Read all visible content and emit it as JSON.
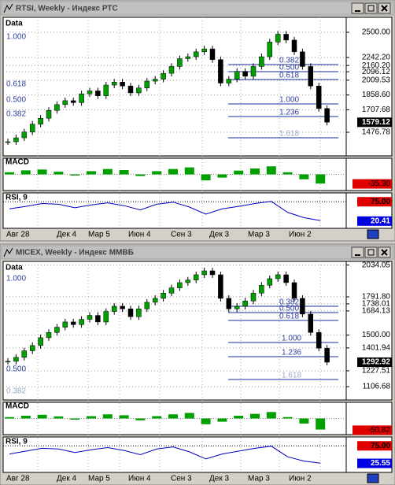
{
  "windows": [
    {
      "title": "RTSI, Weekly - Индекс РТС",
      "data_label": "Data",
      "price_ylim": [
        1235,
        2653
      ],
      "price_ticks": [
        {
          "value": 2500,
          "label": "2500.00"
        },
        {
          "value": 2242.2,
          "label": "2242.20"
        },
        {
          "value": 2160.2,
          "label": "2160.20"
        },
        {
          "value": 2096.12,
          "label": "2096.12"
        },
        {
          "value": 2009.53,
          "label": "2009.53"
        },
        {
          "value": 1858.6,
          "label": "1858.60"
        },
        {
          "value": 1707.68,
          "label": "1707.68"
        },
        {
          "value": 1476.78,
          "label": "1476.78"
        }
      ],
      "last_price": {
        "value": 1579.12,
        "label": "1579.12"
      },
      "fib_labels": [
        "1.000",
        "0.618",
        "0.500",
        "0.382",
        "0.382",
        "0.500",
        "0.618",
        "1.000",
        "1.236",
        "1.618"
      ],
      "closes": [
        1380,
        1420,
        1480,
        1560,
        1620,
        1700,
        1760,
        1800,
        1780,
        1870,
        1900,
        1850,
        1960,
        1990,
        1950,
        1880,
        1930,
        2000,
        2020,
        2080,
        2150,
        2230,
        2250,
        2300,
        2330,
        2220,
        1980,
        2020,
        2100,
        2050,
        2150,
        2250,
        2400,
        2480,
        2420,
        2300,
        2150,
        1950,
        1720,
        1580
      ],
      "macd": {
        "label": "MACD",
        "ylim": [
          -60,
          60
        ],
        "values": [
          8,
          15,
          18,
          10,
          -4,
          12,
          20,
          16,
          -6,
          12,
          20,
          26,
          -22,
          -12,
          14,
          22,
          30,
          8,
          -18,
          -34
        ],
        "last": {
          "value": -35.3,
          "label": "-35.30"
        }
      },
      "rsi": {
        "label": "RSI, 9",
        "ylim": [
          0,
          100
        ],
        "values": [
          55,
          62,
          70,
          68,
          58,
          66,
          72,
          64,
          52,
          68,
          74,
          60,
          40,
          55,
          62,
          70,
          76,
          45,
          30,
          22
        ],
        "upper": {
          "value": 75,
          "label": "75.00"
        },
        "last": {
          "value": 20.41,
          "label": "20.41"
        }
      },
      "x_labels": [
        "Авг 28",
        "Дек 4",
        "Мар 5",
        "Июн 4",
        "Сен 3",
        "Дек 3",
        "Мар 3",
        "Июн 2"
      ]
    },
    {
      "title": "MICEX, Weekly - Индекс ММВБ",
      "data_label": "Data",
      "price_ylim": [
        1005,
        2062
      ],
      "price_ticks": [
        {
          "value": 2034.05,
          "label": "2034.05"
        },
        {
          "value": 1791.8,
          "label": "1791.80"
        },
        {
          "value": 1738.01,
          "label": "1738.01"
        },
        {
          "value": 1684.13,
          "label": "1684.13"
        },
        {
          "value": 1500,
          "label": "1500.00"
        },
        {
          "value": 1401.94,
          "label": "1401.94"
        },
        {
          "value": 1227.51,
          "label": "1227.51"
        },
        {
          "value": 1106.68,
          "label": "1106.68"
        }
      ],
      "last_price": {
        "value": 1292.92,
        "label": "1292.92"
      },
      "fib_labels": [
        "1.000",
        "0.382",
        "0.500",
        "0.618",
        "1.000",
        "1.236",
        "1.618",
        "0.500",
        "0.382"
      ],
      "closes": [
        1300,
        1330,
        1380,
        1420,
        1480,
        1520,
        1560,
        1600,
        1580,
        1620,
        1650,
        1600,
        1680,
        1720,
        1700,
        1640,
        1700,
        1750,
        1780,
        1820,
        1860,
        1900,
        1920,
        1960,
        1990,
        1960,
        1780,
        1700,
        1720,
        1760,
        1820,
        1880,
        1930,
        1960,
        1900,
        1780,
        1660,
        1520,
        1400,
        1293
      ],
      "macd": {
        "label": "MACD",
        "ylim": [
          -70,
          70
        ],
        "values": [
          6,
          12,
          16,
          9,
          -5,
          10,
          18,
          14,
          -8,
          10,
          18,
          24,
          -25,
          -14,
          12,
          20,
          28,
          6,
          -22,
          -48
        ],
        "last": {
          "value": -50.82,
          "label": "-50.82"
        }
      },
      "rsi": {
        "label": "RSI, 9",
        "ylim": [
          0,
          100
        ],
        "values": [
          52,
          60,
          68,
          66,
          56,
          64,
          70,
          62,
          50,
          66,
          72,
          58,
          38,
          52,
          60,
          68,
          74,
          44,
          32,
          26
        ],
        "upper": {
          "value": 75,
          "label": "75.00"
        },
        "last": {
          "value": 25.55,
          "label": "25.55"
        }
      },
      "x_labels": [
        "Авг 28",
        "Дек 4",
        "Мар 5",
        "Июн 4",
        "Сен 3",
        "Дек 3",
        "Мар 3",
        "Июн 2"
      ]
    }
  ]
}
